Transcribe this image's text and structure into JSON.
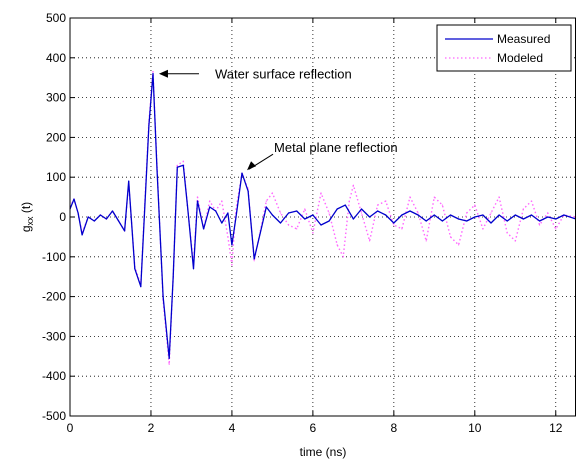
{
  "chart_data": {
    "type": "line",
    "xlabel": "time (ns)",
    "ylabel_main": "g",
    "ylabel_sub": "xx",
    "ylabel_suffix": " (t)",
    "xlim": [
      0,
      12.5
    ],
    "ylim": [
      -500,
      500
    ],
    "x_ticks": [
      0,
      2,
      4,
      6,
      8,
      10,
      12
    ],
    "y_ticks": [
      -500,
      -400,
      -300,
      -200,
      -100,
      0,
      100,
      200,
      300,
      400,
      500
    ],
    "grid": true,
    "legend_position": "top-right",
    "annotations": [
      {
        "text": "Water surface reflection",
        "x": 2.05,
        "y": 360
      },
      {
        "text": "Metal plane reflection",
        "x": 4.25,
        "y": 110
      }
    ],
    "series": [
      {
        "name": "Measured",
        "color": "#0000cc",
        "style": "solid",
        "points": [
          [
            0.0,
            20
          ],
          [
            0.1,
            45
          ],
          [
            0.2,
            10
          ],
          [
            0.3,
            -45
          ],
          [
            0.45,
            0
          ],
          [
            0.6,
            -10
          ],
          [
            0.75,
            5
          ],
          [
            0.9,
            -5
          ],
          [
            1.05,
            15
          ],
          [
            1.2,
            -10
          ],
          [
            1.35,
            -35
          ],
          [
            1.45,
            90
          ],
          [
            1.6,
            -130
          ],
          [
            1.75,
            -175
          ],
          [
            1.85,
            30
          ],
          [
            1.95,
            230
          ],
          [
            2.05,
            360
          ],
          [
            2.15,
            120
          ],
          [
            2.3,
            -200
          ],
          [
            2.45,
            -355
          ],
          [
            2.55,
            -150
          ],
          [
            2.65,
            125
          ],
          [
            2.8,
            130
          ],
          [
            2.9,
            30
          ],
          [
            3.05,
            -130
          ],
          [
            3.15,
            40
          ],
          [
            3.3,
            -30
          ],
          [
            3.45,
            25
          ],
          [
            3.6,
            15
          ],
          [
            3.75,
            -15
          ],
          [
            3.9,
            10
          ],
          [
            4.0,
            -70
          ],
          [
            4.1,
            0
          ],
          [
            4.25,
            110
          ],
          [
            4.4,
            65
          ],
          [
            4.55,
            -105
          ],
          [
            4.7,
            -40
          ],
          [
            4.85,
            25
          ],
          [
            5.0,
            5
          ],
          [
            5.2,
            -15
          ],
          [
            5.4,
            10
          ],
          [
            5.6,
            15
          ],
          [
            5.8,
            -5
          ],
          [
            6.0,
            5
          ],
          [
            6.2,
            -20
          ],
          [
            6.4,
            -10
          ],
          [
            6.6,
            20
          ],
          [
            6.8,
            30
          ],
          [
            7.0,
            -5
          ],
          [
            7.2,
            20
          ],
          [
            7.4,
            0
          ],
          [
            7.6,
            15
          ],
          [
            7.8,
            5
          ],
          [
            8.0,
            -15
          ],
          [
            8.2,
            5
          ],
          [
            8.4,
            15
          ],
          [
            8.6,
            5
          ],
          [
            8.8,
            -10
          ],
          [
            9.0,
            5
          ],
          [
            9.2,
            -10
          ],
          [
            9.4,
            5
          ],
          [
            9.6,
            -5
          ],
          [
            9.8,
            -10
          ],
          [
            10.0,
            0
          ],
          [
            10.2,
            5
          ],
          [
            10.4,
            -15
          ],
          [
            10.6,
            5
          ],
          [
            10.8,
            -10
          ],
          [
            11.0,
            5
          ],
          [
            11.2,
            -5
          ],
          [
            11.4,
            5
          ],
          [
            11.6,
            -10
          ],
          [
            11.8,
            0
          ],
          [
            12.0,
            -5
          ],
          [
            12.2,
            5
          ],
          [
            12.5,
            -5
          ]
        ]
      },
      {
        "name": "Modeled",
        "color": "#ff66ff",
        "style": "dotted",
        "points": [
          [
            0.0,
            25
          ],
          [
            0.1,
            45
          ],
          [
            0.2,
            10
          ],
          [
            0.3,
            -40
          ],
          [
            0.45,
            0
          ],
          [
            0.6,
            -10
          ],
          [
            0.75,
            5
          ],
          [
            0.9,
            -5
          ],
          [
            1.05,
            15
          ],
          [
            1.2,
            -10
          ],
          [
            1.35,
            -35
          ],
          [
            1.45,
            85
          ],
          [
            1.6,
            -125
          ],
          [
            1.75,
            -170
          ],
          [
            1.85,
            40
          ],
          [
            1.95,
            240
          ],
          [
            2.05,
            365
          ],
          [
            2.15,
            130
          ],
          [
            2.3,
            -210
          ],
          [
            2.45,
            -370
          ],
          [
            2.55,
            -150
          ],
          [
            2.65,
            130
          ],
          [
            2.8,
            140
          ],
          [
            2.9,
            30
          ],
          [
            3.05,
            -120
          ],
          [
            3.15,
            50
          ],
          [
            3.3,
            -30
          ],
          [
            3.45,
            40
          ],
          [
            3.6,
            15
          ],
          [
            3.75,
            40
          ],
          [
            3.9,
            -50
          ],
          [
            4.0,
            -120
          ],
          [
            4.1,
            20
          ],
          [
            4.25,
            110
          ],
          [
            4.4,
            70
          ],
          [
            4.55,
            -110
          ],
          [
            4.7,
            -35
          ],
          [
            4.85,
            40
          ],
          [
            5.0,
            60
          ],
          [
            5.2,
            10
          ],
          [
            5.4,
            -20
          ],
          [
            5.6,
            -30
          ],
          [
            5.8,
            20
          ],
          [
            6.0,
            -40
          ],
          [
            6.2,
            60
          ],
          [
            6.4,
            10
          ],
          [
            6.6,
            -70
          ],
          [
            6.75,
            -100
          ],
          [
            6.9,
            40
          ],
          [
            7.0,
            80
          ],
          [
            7.2,
            10
          ],
          [
            7.4,
            -60
          ],
          [
            7.6,
            30
          ],
          [
            7.8,
            40
          ],
          [
            8.0,
            -20
          ],
          [
            8.2,
            -30
          ],
          [
            8.4,
            50
          ],
          [
            8.6,
            10
          ],
          [
            8.8,
            -60
          ],
          [
            9.0,
            50
          ],
          [
            9.2,
            30
          ],
          [
            9.4,
            -50
          ],
          [
            9.6,
            -70
          ],
          [
            9.8,
            10
          ],
          [
            10.0,
            30
          ],
          [
            10.2,
            -30
          ],
          [
            10.4,
            10
          ],
          [
            10.6,
            50
          ],
          [
            10.8,
            -40
          ],
          [
            11.0,
            -60
          ],
          [
            11.2,
            20
          ],
          [
            11.4,
            40
          ],
          [
            11.6,
            -20
          ],
          [
            11.8,
            10
          ],
          [
            12.0,
            -30
          ],
          [
            12.2,
            5
          ],
          [
            12.5,
            0
          ]
        ]
      }
    ]
  }
}
